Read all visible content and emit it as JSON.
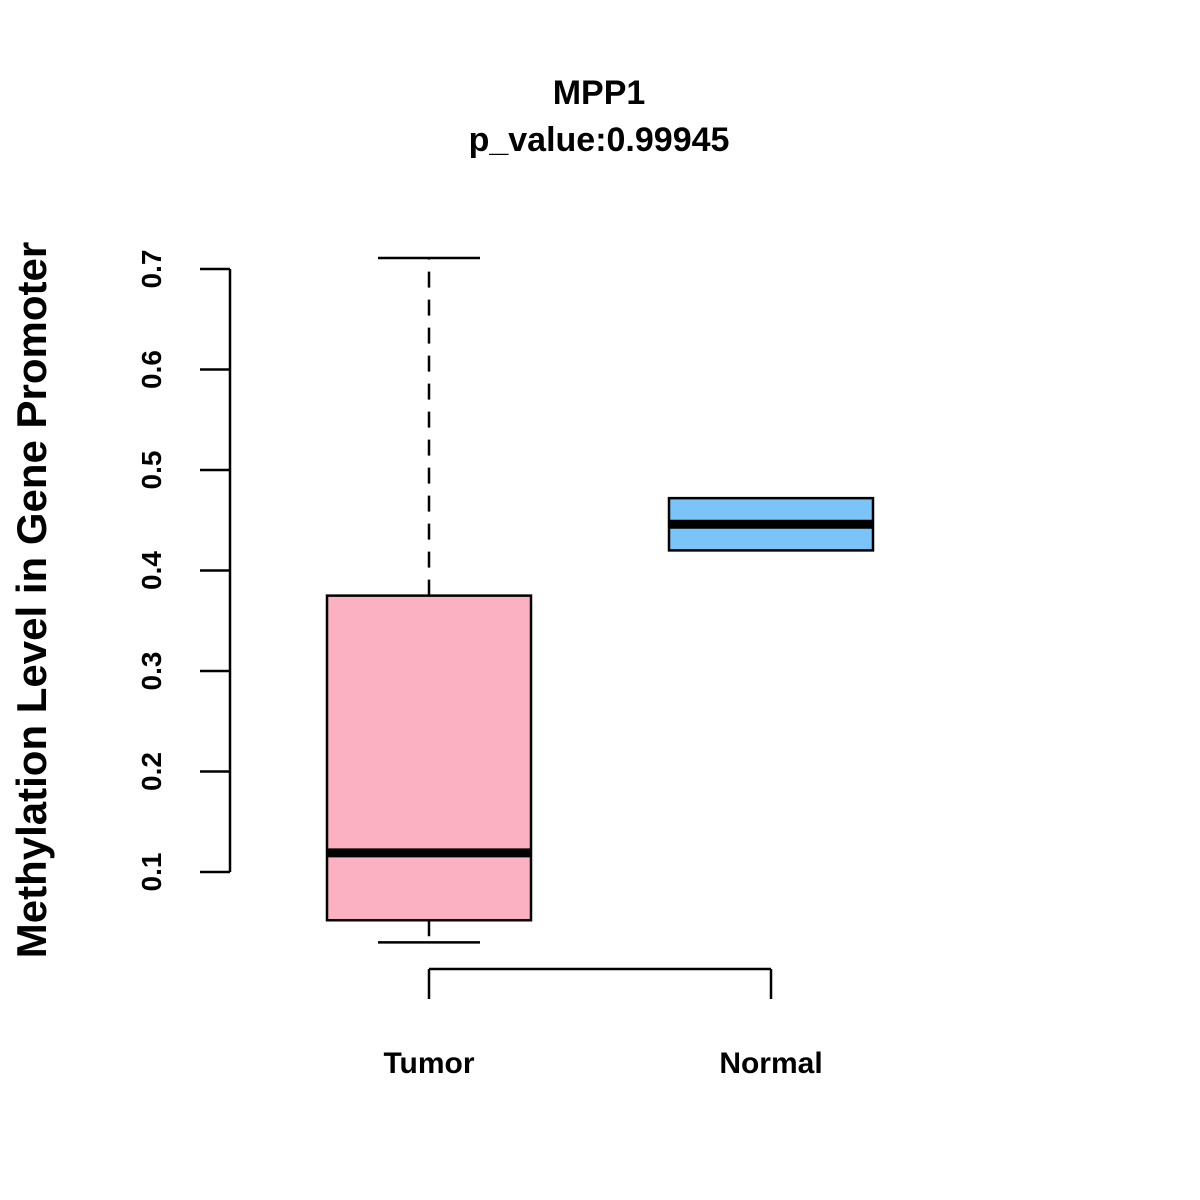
{
  "chart_data": {
    "type": "boxplot",
    "title": "MPP1",
    "subtitle": "p_value:0.99945",
    "xlabel": "",
    "ylabel": "Methylation Level in Gene Promoter",
    "ylim": [
      0.1,
      0.7
    ],
    "yticks": [
      "0.1",
      "0.2",
      "0.3",
      "0.4",
      "0.5",
      "0.6",
      "0.7"
    ],
    "grid": false,
    "categories": [
      "Tumor",
      "Normal"
    ],
    "series": [
      {
        "name": "Tumor",
        "min": 0.03,
        "q1": 0.052,
        "median": 0.119,
        "q3": 0.375,
        "max": 0.711,
        "color": "#FBB1C2"
      },
      {
        "name": "Normal",
        "min": 0.42,
        "q1": 0.42,
        "median": 0.446,
        "q3": 0.472,
        "max": 0.472,
        "color": "#7BC4F8"
      }
    ]
  }
}
